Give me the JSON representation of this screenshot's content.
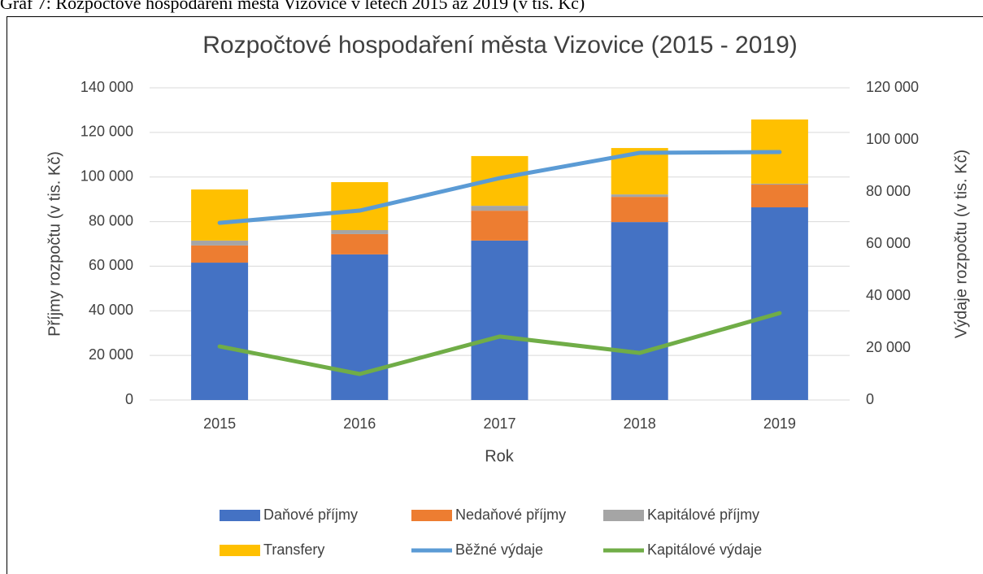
{
  "caption": "Graf 7: Rozpočtové hospodaření města Vizovice v letech 2015 až 2019 (v tis. Kč)",
  "chart_data": {
    "type": "bar",
    "stacked": true,
    "title": "Rozpočtové hospodaření města Vizovice (2015 - 2019)",
    "x_label": "Rok",
    "y_label": "Příjmy rozpočtu (v tis. Kč)",
    "y2_label": "Výdaje rozpočtu (v tis. Kč)",
    "categories": [
      "2015",
      "2016",
      "2017",
      "2018",
      "2019"
    ],
    "series": [
      {
        "name": "Daňové příjmy",
        "color": "#4472c4",
        "values": [
          61600,
          65300,
          71500,
          79800,
          86400
        ]
      },
      {
        "name": "Nedaňové příjmy",
        "color": "#ed7d31",
        "values": [
          7700,
          9100,
          13400,
          11300,
          10200
        ]
      },
      {
        "name": "Kapitálové příjmy",
        "color": "#a5a5a5",
        "values": [
          2200,
          1800,
          2200,
          1100,
          400
        ]
      },
      {
        "name": "Transfery",
        "color": "#ffc000",
        "values": [
          22900,
          21500,
          22300,
          20800,
          28800
        ]
      },
      {
        "name": "Běžné výdaje",
        "color": "#5b9bd5",
        "axis": "y2",
        "values": [
          68100,
          72800,
          85300,
          95000,
          95300
        ]
      },
      {
        "name": "Kapitálové výdaje",
        "color": "#70ad47",
        "axis": "y2",
        "values": [
          20600,
          10000,
          24400,
          18100,
          33400
        ]
      }
    ],
    "ylim": [
      0,
      140000
    ],
    "yticks": [
      0,
      {
        "value": 20000,
        "label": "20 000"
      },
      {
        "value": 40000,
        "label": "40 000"
      },
      {
        "value": 60000,
        "label": "60 000"
      },
      {
        "value": 80000,
        "label": "80 000"
      },
      {
        "value": 100000,
        "label": "100 000"
      },
      {
        "value": 120000,
        "label": "120 000"
      },
      {
        "value": 140000,
        "label": "140 000"
      }
    ],
    "y2lim": [
      0,
      120000
    ],
    "y2ticks": [
      0,
      {
        "value": 20000,
        "label": "20 000"
      },
      {
        "value": 40000,
        "label": "40 000"
      },
      {
        "value": 60000,
        "label": "60 000"
      },
      {
        "value": 80000,
        "label": "80 000"
      },
      {
        "value": 100000,
        "label": "100 000"
      },
      {
        "value": 120000,
        "label": "120 000"
      }
    ],
    "grid": true,
    "legend": "bottom"
  }
}
